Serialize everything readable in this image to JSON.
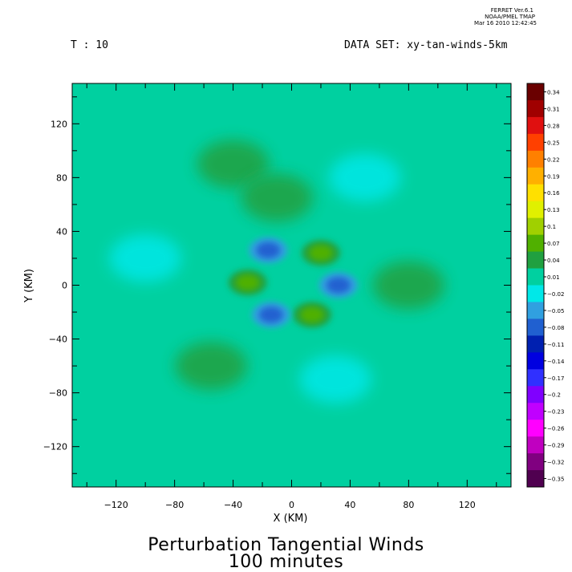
{
  "header": {
    "ferret_version": "FERRET  Ver.6.1",
    "ferret_org": "NOAA/PMEL TMAP",
    "ferret_date": "Mar 16 2010 12:42:45",
    "time_label": "T : 10",
    "dataset_label": "DATA SET: xy-tan-winds-5km"
  },
  "title": {
    "line1": "Perturbation Tangential Winds",
    "line2": "100 minutes"
  },
  "chart_data": {
    "type": "heatmap",
    "xlabel": "X (KM)",
    "ylabel": "Y (KM)",
    "xlim": [
      -150,
      150
    ],
    "ylim": [
      -150,
      150
    ],
    "xticks": [
      -120,
      -80,
      -40,
      0,
      40,
      80,
      120
    ],
    "yticks": [
      120,
      80,
      40,
      0,
      -40,
      -80,
      -120
    ],
    "colorbar": {
      "levels": [
        0.34,
        0.31,
        0.28,
        0.25,
        0.22,
        0.19,
        0.16,
        0.13,
        0.1,
        0.07,
        0.04,
        0.01,
        -0.02,
        -0.05,
        -0.08,
        -0.11,
        -0.14,
        -0.17,
        -0.2,
        -0.23,
        -0.26,
        -0.29,
        -0.32,
        -0.35
      ],
      "colors": [
        "#6a0000",
        "#a00000",
        "#e01010",
        "#ff4000",
        "#ff8000",
        "#ffb000",
        "#ffe000",
        "#e0f000",
        "#a0d000",
        "#50b000",
        "#20a040",
        "#00d0a0",
        "#00e8e8",
        "#30a0e0",
        "#2060d0",
        "#0020b0",
        "#0000e0",
        "#3030ff",
        "#8000ff",
        "#c000ff",
        "#ff00ff",
        "#c000c0",
        "#800080",
        "#500050"
      ]
    },
    "features": [
      {
        "x": 20,
        "y": 24,
        "value": 0.09,
        "label": "inner positive lobe"
      },
      {
        "x": -30,
        "y": 2,
        "value": 0.09,
        "label": "inner positive lobe"
      },
      {
        "x": 14,
        "y": -22,
        "value": 0.09,
        "label": "inner positive lobe"
      },
      {
        "x": -16,
        "y": 26,
        "value": -0.1,
        "label": "inner negative lobe"
      },
      {
        "x": 32,
        "y": 0,
        "value": -0.1,
        "label": "inner negative lobe"
      },
      {
        "x": -14,
        "y": -22,
        "value": -0.09,
        "label": "inner negative lobe"
      },
      {
        "x": -40,
        "y": 90,
        "value": 0.04,
        "label": "outer positive band"
      },
      {
        "x": -10,
        "y": 65,
        "value": 0.04,
        "label": "outer positive band"
      },
      {
        "x": 80,
        "y": 0,
        "value": 0.04,
        "label": "outer positive band"
      },
      {
        "x": -55,
        "y": -60,
        "value": 0.035,
        "label": "outer positive band"
      },
      {
        "x": -100,
        "y": 20,
        "value": -0.03,
        "label": "outer negative band"
      },
      {
        "x": 50,
        "y": 80,
        "value": -0.025,
        "label": "outer negative band"
      },
      {
        "x": 30,
        "y": -70,
        "value": -0.03,
        "label": "outer negative band"
      }
    ]
  }
}
